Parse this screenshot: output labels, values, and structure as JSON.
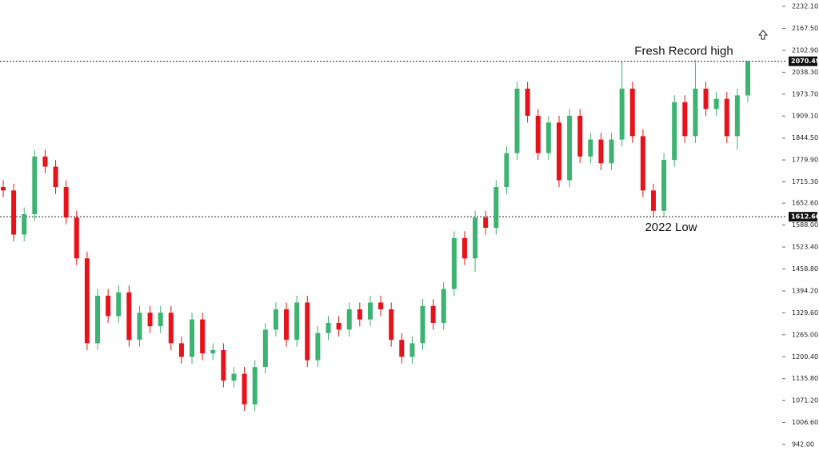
{
  "chart_data": {
    "type": "candlestick",
    "colors": {
      "up": "#3cb371",
      "down": "#e8121a"
    },
    "ylim": [
      902,
      2251
    ],
    "yticks": [
      {
        "value": 2232.1,
        "label": "2232.10"
      },
      {
        "value": 2167.5,
        "label": "2167.50"
      },
      {
        "value": 2102.9,
        "label": "2102.90"
      },
      {
        "value": 2038.3,
        "label": "2038.30"
      },
      {
        "value": 1973.7,
        "label": "1973.70"
      },
      {
        "value": 1909.1,
        "label": "1909.10"
      },
      {
        "value": 1844.5,
        "label": "1844.50"
      },
      {
        "value": 1779.9,
        "label": "1779.90"
      },
      {
        "value": 1715.3,
        "label": "1715.30"
      },
      {
        "value": 1652.6,
        "label": "1652.60"
      },
      {
        "value": 1588.0,
        "label": "1588.00"
      },
      {
        "value": 1523.4,
        "label": "1523.40"
      },
      {
        "value": 1458.8,
        "label": "1458.80"
      },
      {
        "value": 1394.2,
        "label": "1394.20"
      },
      {
        "value": 1329.6,
        "label": "1329.60"
      },
      {
        "value": 1265.0,
        "label": "1265.00"
      },
      {
        "value": 1200.4,
        "label": "1200.40"
      },
      {
        "value": 1135.8,
        "label": "1135.80"
      },
      {
        "value": 1071.2,
        "label": "1071.20"
      },
      {
        "value": 1006.6,
        "label": "1006.60"
      },
      {
        "value": 942.0,
        "label": "942.00"
      }
    ],
    "hlines": [
      {
        "value": 2070.49,
        "label": "2070.49"
      },
      {
        "value": 1612.66,
        "label": "1612.66"
      }
    ],
    "annotations": [
      {
        "text": "Fresh Record high",
        "value": 2070.49
      },
      {
        "text": "2022 Low",
        "value": 1612.66
      }
    ],
    "open": [
      1700,
      1690,
      1560,
      1620,
      1790,
      1760,
      1700,
      1610,
      1490,
      1240,
      1380,
      1320,
      1390,
      1250,
      1330,
      1290,
      1330,
      1240,
      1200,
      1310,
      1210,
      1220,
      1130,
      1150,
      1060,
      1170,
      1280,
      1340,
      1250,
      1360,
      1190,
      1270,
      1300,
      1280,
      1340,
      1310,
      1360,
      1340,
      1250,
      1200,
      1240,
      1350,
      1300,
      1400,
      1550,
      1490,
      1610,
      1580,
      1700,
      1800,
      1990,
      1910,
      1800,
      1890,
      1720,
      1910,
      1790,
      1840,
      1770,
      1840,
      1990,
      1850,
      1690,
      1630,
      1780,
      1950,
      1850,
      1990,
      1930,
      1960,
      1850,
      1970
    ],
    "high": [
      1720,
      1710,
      1640,
      1810,
      1810,
      1780,
      1720,
      1630,
      1510,
      1400,
      1400,
      1410,
      1410,
      1350,
      1350,
      1350,
      1350,
      1260,
      1330,
      1330,
      1240,
      1240,
      1170,
      1170,
      1190,
      1300,
      1360,
      1360,
      1380,
      1380,
      1290,
      1320,
      1320,
      1360,
      1360,
      1380,
      1380,
      1360,
      1270,
      1260,
      1370,
      1370,
      1420,
      1570,
      1570,
      1630,
      1630,
      1720,
      1820,
      2010,
      2010,
      1930,
      1910,
      1910,
      1930,
      1930,
      1860,
      1860,
      1860,
      2070,
      2010,
      1870,
      1710,
      1800,
      1970,
      1970,
      2075,
      2010,
      1980,
      1980,
      1990,
      2072
    ],
    "low": [
      1670,
      1540,
      1540,
      1600,
      1740,
      1680,
      1590,
      1470,
      1220,
      1220,
      1300,
      1300,
      1230,
      1230,
      1270,
      1270,
      1220,
      1180,
      1180,
      1190,
      1190,
      1110,
      1110,
      1040,
      1040,
      1150,
      1260,
      1230,
      1230,
      1170,
      1170,
      1250,
      1260,
      1260,
      1290,
      1290,
      1320,
      1230,
      1180,
      1180,
      1220,
      1280,
      1280,
      1380,
      1470,
      1450,
      1560,
      1560,
      1680,
      1780,
      1890,
      1780,
      1780,
      1700,
      1700,
      1770,
      1770,
      1750,
      1750,
      1820,
      1830,
      1670,
      1612.66,
      1610,
      1760,
      1830,
      1830,
      1910,
      1910,
      1830,
      1810,
      1950
    ],
    "close": [
      1690,
      1560,
      1620,
      1790,
      1760,
      1700,
      1610,
      1490,
      1240,
      1380,
      1320,
      1390,
      1250,
      1330,
      1290,
      1330,
      1240,
      1200,
      1310,
      1210,
      1220,
      1130,
      1150,
      1060,
      1170,
      1280,
      1340,
      1250,
      1360,
      1190,
      1270,
      1300,
      1280,
      1340,
      1310,
      1360,
      1340,
      1250,
      1200,
      1240,
      1350,
      1300,
      1400,
      1550,
      1490,
      1610,
      1580,
      1700,
      1800,
      1990,
      1910,
      1800,
      1890,
      1720,
      1910,
      1790,
      1840,
      1770,
      1840,
      1990,
      1850,
      1690,
      1630,
      1780,
      1950,
      1850,
      1990,
      1930,
      1960,
      1850,
      1970,
      2070
    ]
  }
}
